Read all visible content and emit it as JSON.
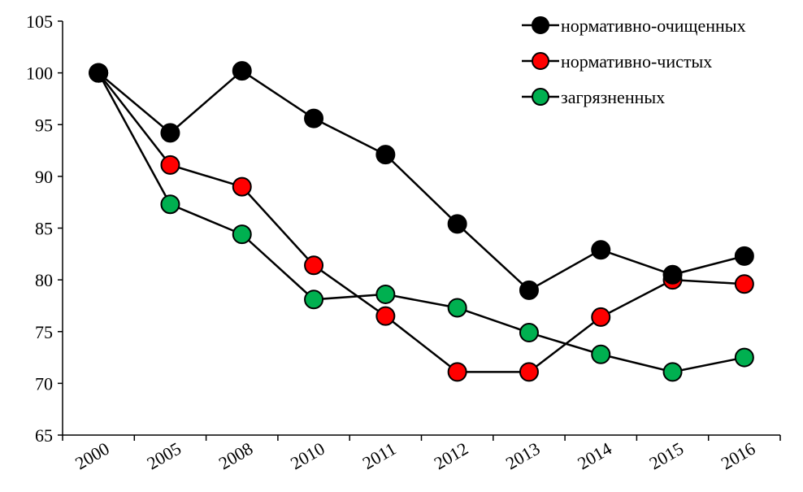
{
  "chart_data": {
    "type": "line",
    "title": "",
    "xlabel": "",
    "ylabel": "",
    "ylim": [
      65,
      105
    ],
    "yticks": [
      65,
      70,
      75,
      80,
      85,
      90,
      95,
      100,
      105
    ],
    "categories": [
      "2000",
      "2005",
      "2008",
      "2010",
      "2011",
      "2012",
      "2013",
      "2014",
      "2015",
      "2016"
    ],
    "grid": false,
    "legend_position": "top-right",
    "series": [
      {
        "name": "нормативно-очищенных",
        "color": "#000000",
        "values": [
          100,
          94.2,
          100.2,
          95.6,
          92.1,
          85.4,
          79.0,
          82.9,
          80.5,
          82.3
        ]
      },
      {
        "name": "нормативно-чистых",
        "color": "#ff0000",
        "values": [
          100,
          91.1,
          89.0,
          81.4,
          76.5,
          71.1,
          71.1,
          76.4,
          80.0,
          79.6
        ]
      },
      {
        "name": "загрязненных",
        "color": "#00b050",
        "values": [
          100,
          87.3,
          84.4,
          78.1,
          78.6,
          77.3,
          74.9,
          72.8,
          71.1,
          72.5
        ]
      }
    ]
  }
}
